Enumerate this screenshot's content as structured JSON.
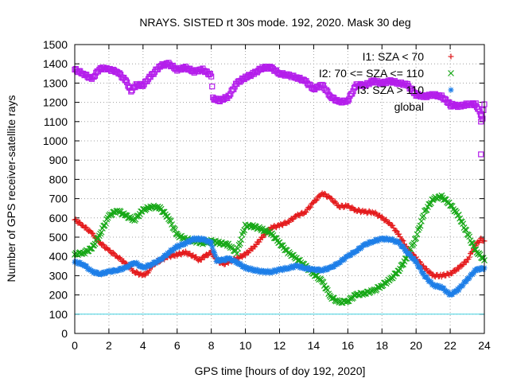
{
  "chart_data": {
    "type": "scatter",
    "title": "NRAYS. SISTED rt 30s mode. 192, 2020. Mask 30 deg",
    "xlabel": "GPS time [hours of doy 192, 2020]",
    "ylabel": "Number of GPS receiver-satellite rays",
    "xlim": [
      0,
      24
    ],
    "ylim": [
      0,
      1500
    ],
    "xticks": [
      0,
      2,
      4,
      6,
      8,
      10,
      12,
      14,
      16,
      18,
      20,
      22,
      24
    ],
    "yticks": [
      0,
      100,
      200,
      300,
      400,
      500,
      600,
      700,
      800,
      900,
      1000,
      1100,
      1200,
      1300,
      1400,
      1500
    ],
    "grid": true,
    "legend_position": "top-right",
    "threshold_line": {
      "y": 100,
      "color": "#40d0e0"
    },
    "series": [
      {
        "name": "I1: SZA < 70",
        "marker": "+",
        "color": "#e41a1c",
        "points": [
          [
            0,
            590
          ],
          [
            0.5,
            560
          ],
          [
            1,
            520
          ],
          [
            1.5,
            470
          ],
          [
            2,
            430
          ],
          [
            2.5,
            400
          ],
          [
            3,
            360
          ],
          [
            3.5,
            320
          ],
          [
            4,
            300
          ],
          [
            4.3,
            320
          ],
          [
            4.6,
            360
          ],
          [
            5,
            380
          ],
          [
            5.5,
            400
          ],
          [
            6,
            410
          ],
          [
            6.5,
            420
          ],
          [
            7,
            400
          ],
          [
            7.3,
            380
          ],
          [
            7.6,
            400
          ],
          [
            8,
            420
          ],
          [
            8.3,
            380
          ],
          [
            8.7,
            360
          ],
          [
            9,
            370
          ],
          [
            9.5,
            390
          ],
          [
            10,
            410
          ],
          [
            10.5,
            450
          ],
          [
            11,
            500
          ],
          [
            11.5,
            550
          ],
          [
            12,
            560
          ],
          [
            12.5,
            580
          ],
          [
            13,
            610
          ],
          [
            13.5,
            630
          ],
          [
            14,
            680
          ],
          [
            14.5,
            730
          ],
          [
            15,
            700
          ],
          [
            15.5,
            660
          ],
          [
            16,
            660
          ],
          [
            16.5,
            640
          ],
          [
            17,
            630
          ],
          [
            17.5,
            630
          ],
          [
            18,
            600
          ],
          [
            18.5,
            570
          ],
          [
            19,
            510
          ],
          [
            19.5,
            440
          ],
          [
            20,
            390
          ],
          [
            20.5,
            340
          ],
          [
            21,
            300
          ],
          [
            21.5,
            300
          ],
          [
            22,
            310
          ],
          [
            22.5,
            340
          ],
          [
            23,
            380
          ],
          [
            23.5,
            460
          ],
          [
            23.8,
            490
          ],
          [
            24,
            480
          ]
        ]
      },
      {
        "name": "I2: 70 <= SZA <= 110",
        "marker": "x",
        "color": "#17a817",
        "points": [
          [
            0,
            410
          ],
          [
            0.5,
            420
          ],
          [
            1,
            440
          ],
          [
            1.5,
            520
          ],
          [
            2,
            610
          ],
          [
            2.5,
            640
          ],
          [
            3,
            610
          ],
          [
            3.5,
            590
          ],
          [
            4,
            640
          ],
          [
            4.5,
            660
          ],
          [
            5,
            650
          ],
          [
            5.5,
            600
          ],
          [
            6,
            510
          ],
          [
            6.5,
            490
          ],
          [
            7,
            480
          ],
          [
            7.5,
            470
          ],
          [
            8,
            480
          ],
          [
            8.5,
            470
          ],
          [
            9,
            460
          ],
          [
            9.5,
            420
          ],
          [
            10,
            560
          ],
          [
            10.5,
            555
          ],
          [
            11,
            540
          ],
          [
            11.5,
            520
          ],
          [
            12,
            470
          ],
          [
            12.5,
            420
          ],
          [
            13,
            390
          ],
          [
            13.5,
            350
          ],
          [
            14,
            310
          ],
          [
            14.5,
            270
          ],
          [
            15,
            190
          ],
          [
            15.5,
            160
          ],
          [
            16,
            170
          ],
          [
            16.5,
            200
          ],
          [
            17,
            210
          ],
          [
            17.5,
            220
          ],
          [
            18,
            250
          ],
          [
            18.5,
            280
          ],
          [
            19,
            330
          ],
          [
            19.5,
            400
          ],
          [
            20,
            500
          ],
          [
            20.5,
            630
          ],
          [
            21,
            700
          ],
          [
            21.5,
            710
          ],
          [
            22,
            670
          ],
          [
            22.5,
            610
          ],
          [
            23,
            520
          ],
          [
            23.5,
            430
          ],
          [
            24,
            380
          ]
        ]
      },
      {
        "name": "I3: SZA > 110",
        "marker": "*",
        "color": "#1e7fe8",
        "points": [
          [
            0,
            370
          ],
          [
            0.5,
            360
          ],
          [
            1,
            320
          ],
          [
            1.5,
            310
          ],
          [
            2,
            320
          ],
          [
            2.5,
            330
          ],
          [
            3,
            340
          ],
          [
            3.5,
            370
          ],
          [
            4,
            340
          ],
          [
            4.5,
            360
          ],
          [
            5,
            380
          ],
          [
            5.5,
            420
          ],
          [
            6,
            450
          ],
          [
            6.5,
            470
          ],
          [
            7,
            490
          ],
          [
            7.5,
            490
          ],
          [
            8,
            470
          ],
          [
            8.3,
            380
          ],
          [
            8.7,
            380
          ],
          [
            9,
            390
          ],
          [
            9.5,
            370
          ],
          [
            10,
            340
          ],
          [
            10.5,
            330
          ],
          [
            11,
            320
          ],
          [
            11.5,
            320
          ],
          [
            12,
            330
          ],
          [
            12.5,
            340
          ],
          [
            13,
            350
          ],
          [
            13.5,
            340
          ],
          [
            14,
            330
          ],
          [
            14.5,
            330
          ],
          [
            15,
            340
          ],
          [
            15.5,
            370
          ],
          [
            16,
            400
          ],
          [
            16.5,
            430
          ],
          [
            17,
            460
          ],
          [
            17.5,
            480
          ],
          [
            18,
            490
          ],
          [
            18.5,
            490
          ],
          [
            19,
            470
          ],
          [
            19.5,
            420
          ],
          [
            20,
            370
          ],
          [
            20.5,
            300
          ],
          [
            21,
            250
          ],
          [
            21.5,
            240
          ],
          [
            22,
            200
          ],
          [
            22.5,
            230
          ],
          [
            23,
            280
          ],
          [
            23.5,
            330
          ],
          [
            24,
            340
          ]
        ]
      },
      {
        "name": "global",
        "marker": "square",
        "color": "#b41eeb",
        "points": [
          [
            0,
            1370
          ],
          [
            0.5,
            1350
          ],
          [
            1,
            1320
          ],
          [
            1.5,
            1380
          ],
          [
            2,
            1370
          ],
          [
            2.5,
            1360
          ],
          [
            3,
            1310
          ],
          [
            3.3,
            1260
          ],
          [
            3.6,
            1290
          ],
          [
            4,
            1290
          ],
          [
            4.5,
            1340
          ],
          [
            5,
            1390
          ],
          [
            5.5,
            1400
          ],
          [
            6,
            1370
          ],
          [
            6.5,
            1380
          ],
          [
            7,
            1360
          ],
          [
            7.5,
            1370
          ],
          [
            8,
            1340
          ],
          [
            8.1,
            1220
          ],
          [
            8.5,
            1210
          ],
          [
            9,
            1230
          ],
          [
            9.5,
            1300
          ],
          [
            10,
            1330
          ],
          [
            10.5,
            1350
          ],
          [
            11,
            1380
          ],
          [
            11.5,
            1380
          ],
          [
            12,
            1350
          ],
          [
            12.5,
            1340
          ],
          [
            13,
            1330
          ],
          [
            13.5,
            1310
          ],
          [
            14,
            1270
          ],
          [
            14.5,
            1290
          ],
          [
            15,
            1230
          ],
          [
            15.5,
            1200
          ],
          [
            16,
            1210
          ],
          [
            16.5,
            1290
          ],
          [
            17,
            1290
          ],
          [
            17.5,
            1310
          ],
          [
            18,
            1300
          ],
          [
            18.5,
            1310
          ],
          [
            19,
            1300
          ],
          [
            19.5,
            1290
          ],
          [
            20,
            1240
          ],
          [
            20.5,
            1230
          ],
          [
            21,
            1240
          ],
          [
            21.5,
            1230
          ],
          [
            22,
            1190
          ],
          [
            22.5,
            1180
          ],
          [
            23,
            1190
          ],
          [
            23.5,
            1190
          ],
          [
            23.9,
            1120
          ],
          [
            24,
            1190
          ]
        ],
        "outliers": [
          [
            23.8,
            930
          ],
          [
            23.8,
            1100
          ],
          [
            23.8,
            1140
          ]
        ]
      }
    ]
  }
}
